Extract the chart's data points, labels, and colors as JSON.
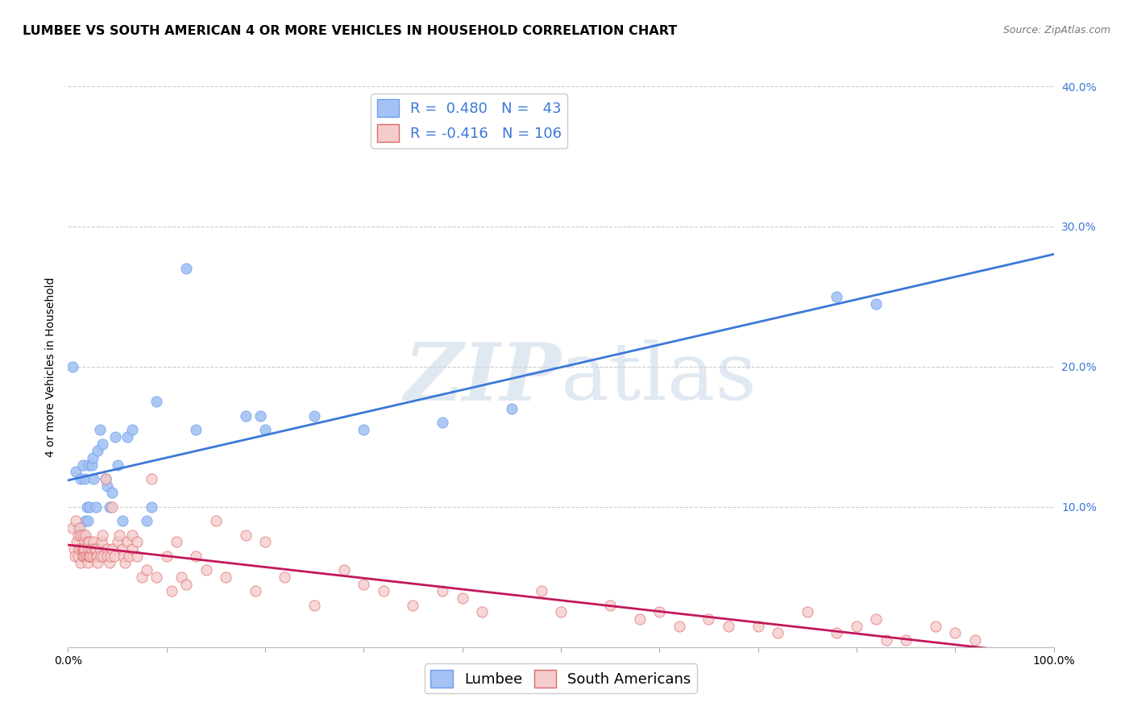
{
  "title": "LUMBEE VS SOUTH AMERICAN 4 OR MORE VEHICLES IN HOUSEHOLD CORRELATION CHART",
  "source": "Source: ZipAtlas.com",
  "ylabel": "4 or more Vehicles in Household",
  "xlim": [
    0.0,
    1.0
  ],
  "ylim": [
    0.0,
    0.4
  ],
  "xticks": [
    0.0,
    0.1,
    0.2,
    0.3,
    0.4,
    0.5,
    0.6,
    0.7,
    0.8,
    0.9,
    1.0
  ],
  "yticks": [
    0.0,
    0.1,
    0.2,
    0.3,
    0.4
  ],
  "ytick_labels": [
    "",
    "10.0%",
    "20.0%",
    "30.0%",
    "40.0%"
  ],
  "xtick_labels": [
    "0.0%",
    "",
    "",
    "",
    "",
    "",
    "",
    "",
    "",
    "",
    "100.0%"
  ],
  "lumbee_R": 0.48,
  "lumbee_N": 43,
  "south_american_R": -0.416,
  "south_american_N": 106,
  "lumbee_color": "#a4c2f4",
  "south_american_color": "#f4cccc",
  "lumbee_dot_edge": "#6d9eeb",
  "south_american_dot_edge": "#e06666",
  "lumbee_line_color": "#3c78d8",
  "south_american_line_color": "#c2185b",
  "legend_text_color": "#3c78d8",
  "watermark_color": "#e0e8f0",
  "background_color": "#ffffff",
  "grid_color": "#cccccc",
  "title_fontsize": 11.5,
  "axis_label_fontsize": 10,
  "tick_fontsize": 10,
  "legend_fontsize": 13,
  "lumbee_x": [
    0.005,
    0.008,
    0.01,
    0.012,
    0.013,
    0.015,
    0.016,
    0.017,
    0.018,
    0.019,
    0.02,
    0.021,
    0.022,
    0.024,
    0.025,
    0.026,
    0.028,
    0.03,
    0.032,
    0.035,
    0.038,
    0.04,
    0.042,
    0.045,
    0.048,
    0.05,
    0.055,
    0.06,
    0.065,
    0.08,
    0.085,
    0.09,
    0.12,
    0.13,
    0.18,
    0.195,
    0.2,
    0.25,
    0.3,
    0.38,
    0.45,
    0.78,
    0.82
  ],
  "lumbee_y": [
    0.2,
    0.125,
    0.085,
    0.08,
    0.12,
    0.13,
    0.07,
    0.12,
    0.09,
    0.1,
    0.09,
    0.13,
    0.1,
    0.13,
    0.135,
    0.12,
    0.1,
    0.14,
    0.155,
    0.145,
    0.12,
    0.115,
    0.1,
    0.11,
    0.15,
    0.13,
    0.09,
    0.15,
    0.155,
    0.09,
    0.1,
    0.175,
    0.27,
    0.155,
    0.165,
    0.165,
    0.155,
    0.165,
    0.155,
    0.16,
    0.17,
    0.25,
    0.245
  ],
  "south_american_x": [
    0.005,
    0.006,
    0.007,
    0.008,
    0.009,
    0.01,
    0.01,
    0.011,
    0.012,
    0.013,
    0.013,
    0.014,
    0.015,
    0.015,
    0.015,
    0.016,
    0.016,
    0.017,
    0.017,
    0.018,
    0.018,
    0.019,
    0.02,
    0.02,
    0.02,
    0.021,
    0.022,
    0.022,
    0.023,
    0.023,
    0.024,
    0.025,
    0.026,
    0.027,
    0.028,
    0.028,
    0.03,
    0.03,
    0.032,
    0.033,
    0.034,
    0.035,
    0.036,
    0.038,
    0.04,
    0.04,
    0.042,
    0.043,
    0.045,
    0.045,
    0.047,
    0.05,
    0.052,
    0.055,
    0.056,
    0.058,
    0.06,
    0.062,
    0.065,
    0.065,
    0.07,
    0.07,
    0.075,
    0.08,
    0.085,
    0.09,
    0.1,
    0.105,
    0.11,
    0.115,
    0.12,
    0.13,
    0.14,
    0.15,
    0.16,
    0.18,
    0.19,
    0.2,
    0.22,
    0.25,
    0.28,
    0.3,
    0.32,
    0.35,
    0.38,
    0.4,
    0.42,
    0.48,
    0.5,
    0.55,
    0.58,
    0.6,
    0.62,
    0.65,
    0.67,
    0.7,
    0.72,
    0.75,
    0.78,
    0.8,
    0.82,
    0.83,
    0.85,
    0.88,
    0.9,
    0.92
  ],
  "south_american_y": [
    0.085,
    0.07,
    0.065,
    0.09,
    0.075,
    0.08,
    0.065,
    0.07,
    0.085,
    0.06,
    0.08,
    0.07,
    0.065,
    0.07,
    0.08,
    0.07,
    0.065,
    0.075,
    0.07,
    0.065,
    0.08,
    0.065,
    0.07,
    0.075,
    0.06,
    0.065,
    0.065,
    0.075,
    0.07,
    0.065,
    0.07,
    0.065,
    0.075,
    0.07,
    0.065,
    0.07,
    0.065,
    0.06,
    0.07,
    0.065,
    0.075,
    0.08,
    0.065,
    0.12,
    0.07,
    0.065,
    0.06,
    0.065,
    0.07,
    0.1,
    0.065,
    0.075,
    0.08,
    0.07,
    0.065,
    0.06,
    0.075,
    0.065,
    0.08,
    0.07,
    0.065,
    0.075,
    0.05,
    0.055,
    0.12,
    0.05,
    0.065,
    0.04,
    0.075,
    0.05,
    0.045,
    0.065,
    0.055,
    0.09,
    0.05,
    0.08,
    0.04,
    0.075,
    0.05,
    0.03,
    0.055,
    0.045,
    0.04,
    0.03,
    0.04,
    0.035,
    0.025,
    0.04,
    0.025,
    0.03,
    0.02,
    0.025,
    0.015,
    0.02,
    0.015,
    0.015,
    0.01,
    0.025,
    0.01,
    0.015,
    0.02,
    0.005,
    0.005,
    0.015,
    0.01,
    0.005
  ]
}
